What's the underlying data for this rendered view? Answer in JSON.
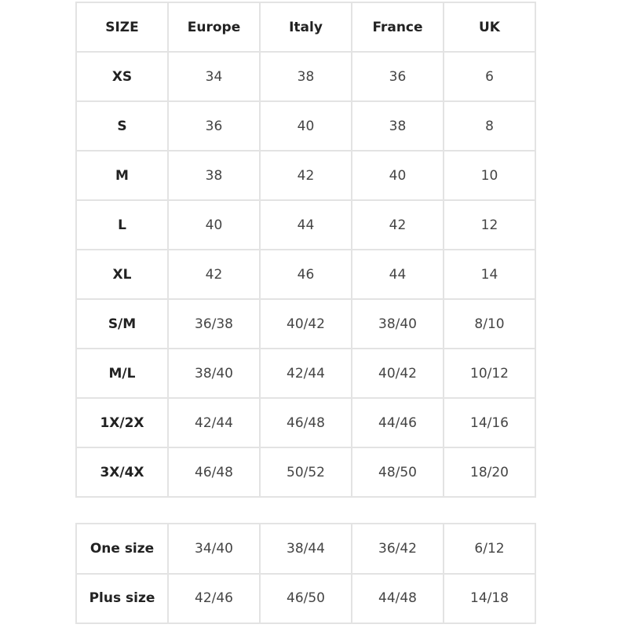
{
  "main_table": {
    "headers": [
      "SIZE",
      "Europe",
      "Italy",
      "France",
      "UK"
    ],
    "rows": [
      [
        "XS",
        "34",
        "38",
        "36",
        "6"
      ],
      [
        "S",
        "36",
        "40",
        "38",
        "8"
      ],
      [
        "M",
        "38",
        "42",
        "40",
        "10"
      ],
      [
        "L",
        "40",
        "44",
        "42",
        "12"
      ],
      [
        "XL",
        "42",
        "46",
        "44",
        "14"
      ],
      [
        "S/M",
        "36/38",
        "40/42",
        "38/40",
        "8/10"
      ],
      [
        "M/L",
        "38/40",
        "42/44",
        "40/42",
        "10/12"
      ],
      [
        "1X/2X",
        "42/44",
        "46/48",
        "44/46",
        "14/16"
      ],
      [
        "3X/4X",
        "46/48",
        "50/52",
        "48/50",
        "18/20"
      ]
    ]
  },
  "secondary_table": {
    "rows": [
      [
        "One size",
        "34/40",
        "38/44",
        "36/42",
        "6/12"
      ],
      [
        "Plus size",
        "42/46",
        "46/50",
        "44/48",
        "14/18"
      ]
    ]
  }
}
